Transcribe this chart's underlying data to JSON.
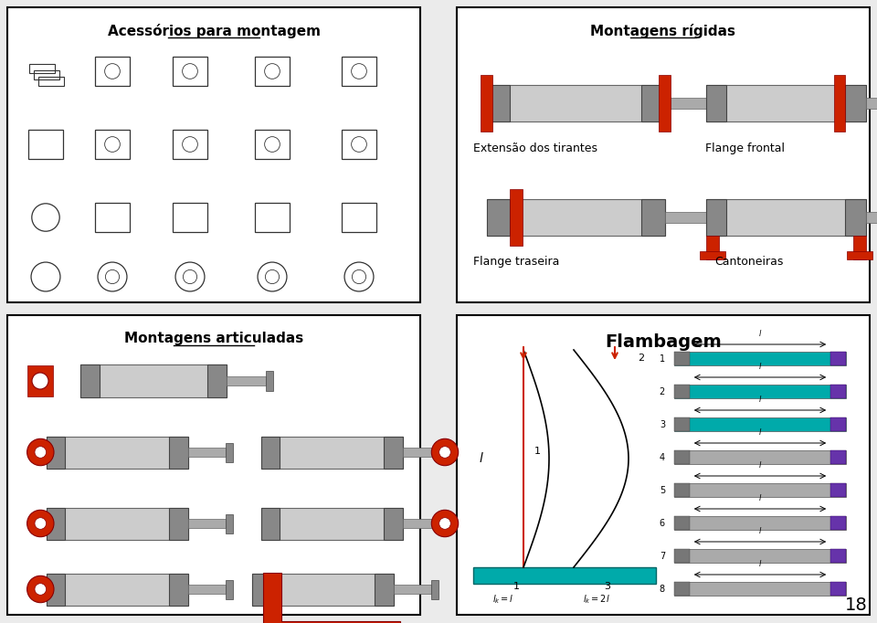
{
  "bg_color": "#ebebeb",
  "panel_bg": "#ffffff",
  "border_color": "#000000",
  "red": "#cc2200",
  "gray_light": "#cccccc",
  "gray_mid": "#888888",
  "gray_dark": "#555555",
  "teal": "#00aaaa",
  "panel_titles": [
    "Acessórios para montagem",
    "Montagens rígidas",
    "Montagens articuladas",
    "Flambagem"
  ],
  "rigid_labels": [
    "Extensão dos tirantes",
    "Flange frontal",
    "Flange traseira",
    "Cantoneiras"
  ],
  "flamb_labels": [
    "1",
    "2",
    "3",
    "4",
    "5",
    "6",
    "7",
    "8"
  ],
  "page_number": "18",
  "figsize": [
    9.6,
    6.82
  ],
  "dpi": 100
}
